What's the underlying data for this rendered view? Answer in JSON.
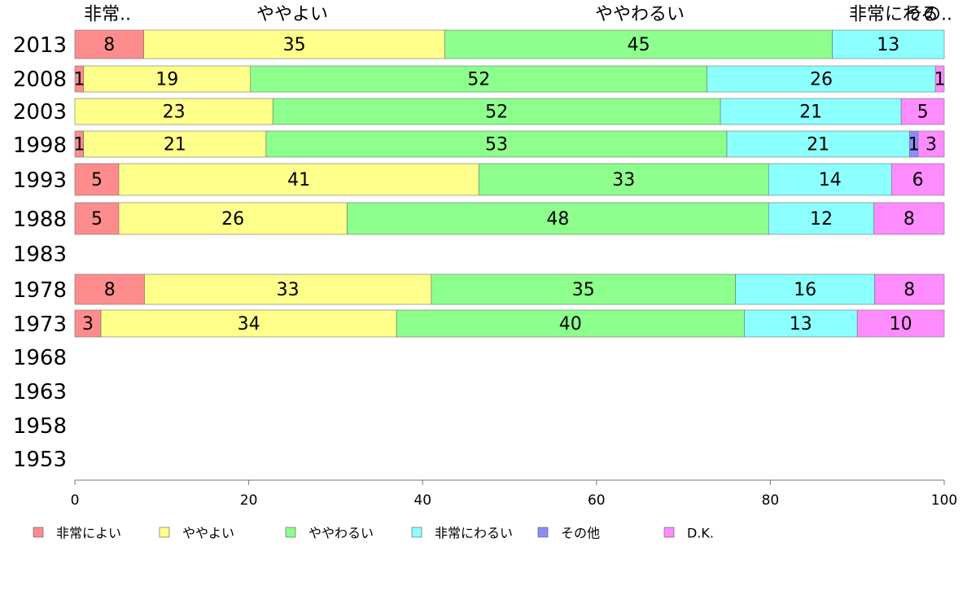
{
  "chart_data": {
    "type": "bar",
    "orientation": "horizontal",
    "stacked": true,
    "categories": [
      "2013",
      "2008",
      "2003",
      "1998",
      "1993",
      "1988",
      "1983",
      "1978",
      "1973",
      "1968",
      "1963",
      "1958",
      "1953"
    ],
    "series": [
      {
        "name": "非常によい",
        "color": "#ff8c8c",
        "values": [
          8,
          1,
          0,
          1,
          5,
          5,
          null,
          8,
          3,
          null,
          null,
          null,
          null
        ]
      },
      {
        "name": "ややよい",
        "color": "#ffff8c",
        "values": [
          35,
          19,
          23,
          21,
          41,
          26,
          null,
          33,
          34,
          null,
          null,
          null,
          null
        ]
      },
      {
        "name": "ややわるい",
        "color": "#8cff8c",
        "values": [
          45,
          52,
          52,
          53,
          33,
          48,
          null,
          35,
          40,
          null,
          null,
          null,
          null
        ]
      },
      {
        "name": "非常にわるい",
        "color": "#8cffff",
        "values": [
          13,
          26,
          21,
          21,
          14,
          12,
          null,
          16,
          13,
          null,
          null,
          null,
          null
        ]
      },
      {
        "name": "その他",
        "color": "#8c8cff",
        "values": [
          0,
          0,
          0,
          1,
          0,
          0,
          null,
          0,
          0,
          null,
          null,
          null,
          null
        ]
      },
      {
        "name": "D.K.",
        "color": "#ff8cff",
        "values": [
          0,
          1,
          5,
          3,
          6,
          8,
          null,
          8,
          10,
          null,
          null,
          null,
          null
        ]
      }
    ],
    "top_labels": [
      "非常..",
      "ややよい",
      "ややわるい",
      "非常にわる",
      "その.."
    ],
    "xlim": [
      0,
      100
    ],
    "xticks": [
      "0",
      "20",
      "40",
      "60",
      "80",
      "100"
    ],
    "legend_position": "bottom"
  }
}
